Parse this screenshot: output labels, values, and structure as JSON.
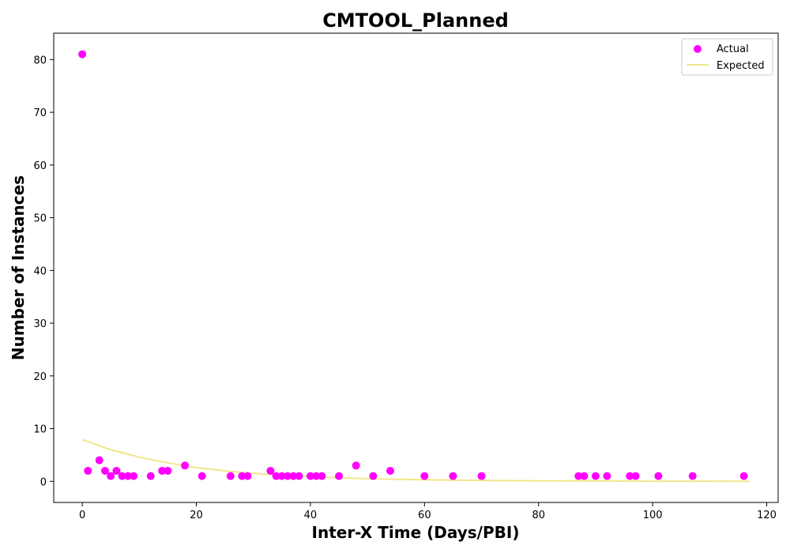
{
  "chart_data": {
    "type": "scatter",
    "title": "CMTOOL_Planned",
    "xlabel": "Inter-X Time (Days/PBI)",
    "ylabel": "Number of Instances",
    "xlim": [
      -5,
      122
    ],
    "ylim": [
      -4,
      85
    ],
    "xticks": [
      0,
      20,
      40,
      60,
      80,
      100,
      120
    ],
    "yticks": [
      0,
      10,
      20,
      30,
      40,
      50,
      60,
      70,
      80
    ],
    "grid": false,
    "legend_position": "top-right",
    "series": [
      {
        "name": "Actual",
        "kind": "scatter",
        "color": "#ff00ff",
        "points": [
          [
            0,
            81
          ],
          [
            1,
            2
          ],
          [
            3,
            4
          ],
          [
            4,
            2
          ],
          [
            5,
            1
          ],
          [
            6,
            2
          ],
          [
            7,
            1
          ],
          [
            8,
            1
          ],
          [
            9,
            1
          ],
          [
            12,
            1
          ],
          [
            14,
            2
          ],
          [
            15,
            2
          ],
          [
            18,
            3
          ],
          [
            21,
            1
          ],
          [
            26,
            1
          ],
          [
            28,
            1
          ],
          [
            29,
            1
          ],
          [
            33,
            2
          ],
          [
            34,
            1
          ],
          [
            35,
            1
          ],
          [
            36,
            1
          ],
          [
            37,
            1
          ],
          [
            38,
            1
          ],
          [
            40,
            1
          ],
          [
            41,
            1
          ],
          [
            42,
            1
          ],
          [
            45,
            1
          ],
          [
            48,
            3
          ],
          [
            51,
            1
          ],
          [
            54,
            2
          ],
          [
            60,
            1
          ],
          [
            65,
            1
          ],
          [
            70,
            1
          ],
          [
            87,
            1
          ],
          [
            88,
            1
          ],
          [
            90,
            1
          ],
          [
            92,
            1
          ],
          [
            96,
            1
          ],
          [
            97,
            1
          ],
          [
            101,
            1
          ],
          [
            107,
            1
          ],
          [
            116,
            1
          ]
        ]
      },
      {
        "name": "Expected",
        "kind": "line",
        "color": "#f0e68c",
        "points": [
          [
            0,
            7.9
          ],
          [
            5,
            6.0
          ],
          [
            10,
            4.6
          ],
          [
            15,
            3.5
          ],
          [
            20,
            2.6
          ],
          [
            25,
            2.0
          ],
          [
            30,
            1.5
          ],
          [
            35,
            1.15
          ],
          [
            40,
            0.88
          ],
          [
            45,
            0.67
          ],
          [
            50,
            0.51
          ],
          [
            55,
            0.39
          ],
          [
            60,
            0.3
          ],
          [
            65,
            0.23
          ],
          [
            70,
            0.17
          ],
          [
            75,
            0.13
          ],
          [
            80,
            0.1
          ],
          [
            85,
            0.077
          ],
          [
            90,
            0.059
          ],
          [
            95,
            0.045
          ],
          [
            100,
            0.034
          ],
          [
            105,
            0.026
          ],
          [
            110,
            0.02
          ],
          [
            117,
            0.013
          ]
        ]
      }
    ]
  }
}
